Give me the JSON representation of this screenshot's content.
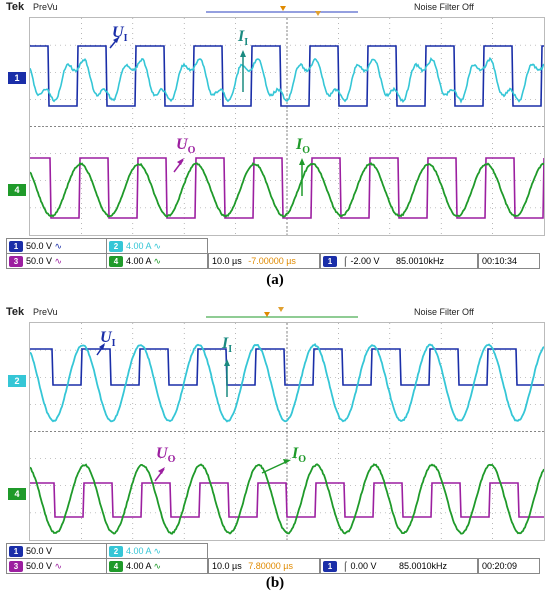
{
  "panels": [
    {
      "id": "a",
      "brand": "Tek",
      "mode": "PreVu",
      "filter": "Noise Filter Off",
      "caption": "(a)",
      "ch_markers": [
        "1",
        "4"
      ],
      "labels": {
        "ui": "U",
        "ui_sub": "I",
        "ii": "I",
        "ii_sub": "I",
        "uo": "U",
        "uo_sub": "O",
        "io": "I",
        "io_sub": "O"
      },
      "channels": [
        {
          "num": "1",
          "scale": "50.0 V",
          "color": "#1a2ea8"
        },
        {
          "num": "2",
          "scale": "4.00 A",
          "color": "#35c6d6"
        },
        {
          "num": "3",
          "scale": "50.0 V",
          "color": "#9c1fa0"
        },
        {
          "num": "4",
          "scale": "4.00 A",
          "color": "#1f9a2a"
        }
      ],
      "timebase": "10.0 µs",
      "delay": "-7.00000 µs",
      "trigger_ch": "1",
      "trigger_level": "-2.00 V",
      "freq": "85.0010kHz",
      "clock": "00:10:34"
    },
    {
      "id": "b",
      "brand": "Tek",
      "mode": "PreVu",
      "filter": "Noise Filter Off",
      "caption": "(b)",
      "ch_markers": [
        "2",
        "4"
      ],
      "labels": {
        "ui": "U",
        "ui_sub": "I",
        "ii": "I",
        "ii_sub": "I",
        "uo": "U",
        "uo_sub": "O",
        "io": "I",
        "io_sub": "O"
      },
      "channels": [
        {
          "num": "1",
          "scale": "50.0 V",
          "color": "#1a2ea8"
        },
        {
          "num": "2",
          "scale": "4.00 A",
          "color": "#35c6d6"
        },
        {
          "num": "3",
          "scale": "50.0 V",
          "color": "#9c1fa0"
        },
        {
          "num": "4",
          "scale": "4.00 A",
          "color": "#1f9a2a"
        }
      ],
      "timebase": "10.0 µs",
      "delay": "7.80000 µs",
      "trigger_ch": "1",
      "trigger_level": "0.00 V",
      "freq": "85.0010kHz",
      "clock": "00:20:09"
    }
  ]
}
